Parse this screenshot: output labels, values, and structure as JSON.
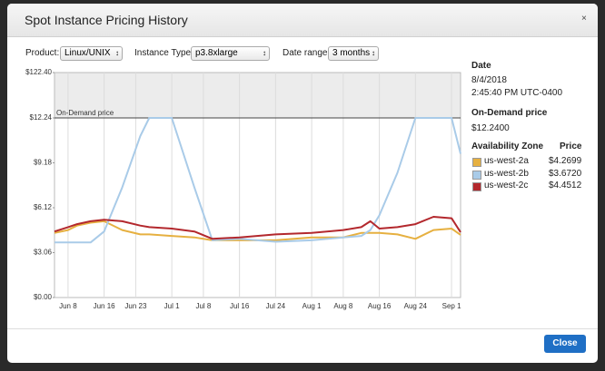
{
  "dialog": {
    "title": "Spot Instance Pricing History",
    "close_icon": "×",
    "button": "Close"
  },
  "controls": {
    "product_label": "Product:",
    "product": "Linux/UNIX",
    "instance_label": "Instance Type:",
    "instance": "p3.8xlarge",
    "range_label": "Date range:",
    "range": "3 months"
  },
  "panel": {
    "date_heading": "Date",
    "date": "8/4/2018",
    "time": "2:45:40 PM UTC-0400",
    "on_demand_heading": "On-Demand price",
    "on_demand_price": "$12.2400",
    "zone_heading": "Availability Zone",
    "price_heading": "Price",
    "prices": [
      "$4.2699",
      "$3.6720",
      "$4.4512"
    ]
  },
  "chart_data": {
    "type": "line",
    "x": [
      "06-05",
      "06-08",
      "06-10",
      "06-13",
      "06-16",
      "06-20",
      "06-24",
      "06-26",
      "07-01",
      "07-06",
      "07-10",
      "07-16",
      "07-24",
      "08-01",
      "08-08",
      "08-12",
      "08-14",
      "08-16",
      "08-20",
      "08-24",
      "08-28",
      "09-01",
      "09-03"
    ],
    "xlim": [
      "06-05",
      "09-03"
    ],
    "xticks": [
      {
        "value": "06-08",
        "label": "Jun 8"
      },
      {
        "value": "06-16",
        "label": "Jun 16"
      },
      {
        "value": "06-23",
        "label": "Jun 23"
      },
      {
        "value": "07-01",
        "label": "Jul 1"
      },
      {
        "value": "07-08",
        "label": "Jul 8"
      },
      {
        "value": "07-16",
        "label": "Jul 16"
      },
      {
        "value": "07-24",
        "label": "Jul 24"
      },
      {
        "value": "08-01",
        "label": "Aug 1"
      },
      {
        "value": "08-08",
        "label": "Aug 8"
      },
      {
        "value": "08-16",
        "label": "Aug 16"
      },
      {
        "value": "08-24",
        "label": "Aug 24"
      },
      {
        "value": "09-01",
        "label": "Sep 1"
      }
    ],
    "ylim": [
      0,
      12.24
    ],
    "yticks": [
      {
        "value": 0,
        "label": "$0.00"
      },
      {
        "value": 3.06,
        "label": "$3.06"
      },
      {
        "value": 6.12,
        "label": "$6.12"
      },
      {
        "value": 9.18,
        "label": "$9.18"
      },
      {
        "value": 12.24,
        "label": "$12.24"
      }
    ],
    "y_break": {
      "value": 122.4,
      "label": "$122.40"
    },
    "reference_line": {
      "value": 12.24,
      "label": "On-Demand price"
    },
    "grid": "x",
    "series": [
      {
        "name": "us-west-2a",
        "color": "#e6b040",
        "values": [
          4.4,
          4.6,
          4.9,
          5.1,
          5.2,
          4.6,
          4.3,
          4.3,
          4.2,
          4.1,
          3.9,
          3.9,
          3.9,
          4.1,
          4.1,
          4.4,
          4.4,
          4.4,
          4.3,
          4.0,
          4.6,
          4.7,
          4.27
        ]
      },
      {
        "name": "us-west-2b",
        "color": "#a9cbe8",
        "values": [
          3.75,
          3.75,
          3.75,
          3.75,
          4.5,
          7.5,
          11.0,
          12.24,
          12.24,
          7.5,
          3.9,
          4.0,
          3.8,
          3.9,
          4.1,
          4.2,
          4.6,
          5.6,
          8.5,
          12.24,
          12.24,
          12.24,
          9.8
        ]
      },
      {
        "name": "us-west-2c",
        "color": "#b3282d",
        "values": [
          4.5,
          4.8,
          5.0,
          5.2,
          5.3,
          5.2,
          4.9,
          4.8,
          4.7,
          4.5,
          4.0,
          4.1,
          4.3,
          4.4,
          4.6,
          4.8,
          5.2,
          4.7,
          4.8,
          5.0,
          5.5,
          5.4,
          4.45
        ]
      }
    ]
  }
}
